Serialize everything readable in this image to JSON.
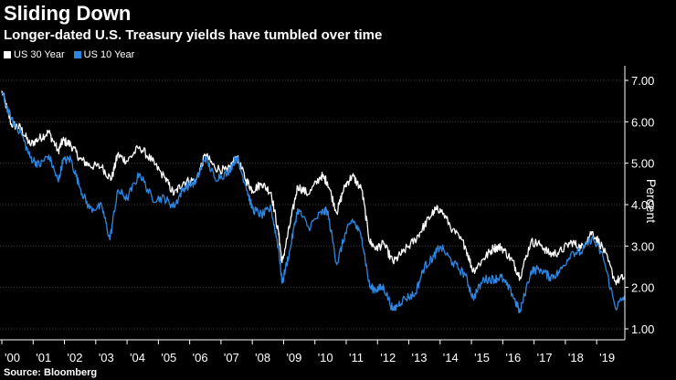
{
  "chart_data": {
    "type": "line",
    "title": "Sliding Down",
    "subtitle": "Longer-dated U.S. Treasury yields have tumbled over time",
    "source": "Source: Bloomberg",
    "ylabel": "Percent",
    "xlabel": "",
    "xlim": [
      2000.0,
      2019.9
    ],
    "ylim": [
      1.0,
      7.0
    ],
    "yticks": [
      "7.00",
      "6.00",
      "5.00",
      "4.00",
      "3.00",
      "2.00",
      "1.00"
    ],
    "ytick_values": [
      7,
      6,
      5,
      4,
      3,
      2,
      1
    ],
    "xticks": [
      "'00",
      "'01",
      "'02",
      "'03",
      "'04",
      "'05",
      "'06",
      "'07",
      "'08",
      "'09",
      "'10",
      "'11",
      "'12",
      "'13",
      "'14",
      "'15",
      "'16",
      "'17",
      "'18",
      "'19"
    ],
    "xtick_values": [
      2000,
      2001,
      2002,
      2003,
      2004,
      2005,
      2006,
      2007,
      2008,
      2009,
      2010,
      2011,
      2012,
      2013,
      2014,
      2015,
      2016,
      2017,
      2018,
      2019
    ],
    "series": [
      {
        "name": "US 30 Year",
        "color": "#ffffff",
        "x": [
          2000.0,
          2000.3,
          2000.6,
          2000.9,
          2001.2,
          2001.5,
          2001.8,
          2001.95,
          2002.2,
          2002.5,
          2002.8,
          2003.2,
          2003.5,
          2003.7,
          2004.0,
          2004.4,
          2004.8,
          2005.2,
          2005.5,
          2005.8,
          2006.2,
          2006.5,
          2006.8,
          2007.2,
          2007.5,
          2007.8,
          2008.0,
          2008.3,
          2008.6,
          2008.85,
          2008.95,
          2009.2,
          2009.45,
          2009.8,
          2010.2,
          2010.4,
          2010.7,
          2010.95,
          2011.2,
          2011.5,
          2011.75,
          2011.95,
          2012.2,
          2012.5,
          2012.8,
          2013.2,
          2013.5,
          2013.8,
          2014.0,
          2014.4,
          2014.8,
          2015.05,
          2015.4,
          2015.7,
          2015.95,
          2016.3,
          2016.55,
          2016.9,
          2017.2,
          2017.5,
          2017.8,
          2018.2,
          2018.5,
          2018.85,
          2019.2,
          2019.6,
          2019.9
        ],
        "values": [
          6.75,
          5.95,
          5.85,
          5.45,
          5.6,
          5.75,
          5.3,
          5.55,
          5.45,
          5.1,
          4.95,
          4.9,
          4.6,
          5.2,
          5.05,
          5.4,
          5.05,
          4.65,
          4.25,
          4.55,
          4.6,
          5.2,
          4.9,
          4.8,
          5.15,
          4.6,
          4.35,
          4.5,
          4.3,
          3.25,
          2.6,
          3.5,
          4.45,
          4.25,
          4.7,
          4.55,
          3.8,
          4.45,
          4.7,
          4.35,
          3.1,
          2.95,
          3.05,
          2.6,
          2.85,
          3.15,
          3.5,
          3.85,
          3.9,
          3.4,
          3.0,
          2.4,
          2.7,
          2.95,
          2.98,
          2.65,
          2.25,
          3.1,
          3.05,
          2.8,
          2.85,
          3.1,
          2.95,
          3.35,
          2.95,
          2.15,
          2.25
        ]
      },
      {
        "name": "US 10 Year",
        "color": "#2e86e0",
        "x": [
          2000.0,
          2000.3,
          2000.6,
          2000.9,
          2001.2,
          2001.5,
          2001.8,
          2001.95,
          2002.2,
          2002.5,
          2002.8,
          2003.2,
          2003.45,
          2003.7,
          2004.0,
          2004.4,
          2004.8,
          2005.2,
          2005.5,
          2005.8,
          2006.2,
          2006.5,
          2006.8,
          2007.2,
          2007.5,
          2007.8,
          2008.0,
          2008.3,
          2008.6,
          2008.85,
          2008.95,
          2009.2,
          2009.45,
          2009.8,
          2010.2,
          2010.4,
          2010.7,
          2010.95,
          2011.2,
          2011.5,
          2011.75,
          2011.95,
          2012.2,
          2012.5,
          2012.8,
          2013.2,
          2013.5,
          2013.8,
          2014.0,
          2014.4,
          2014.8,
          2015.05,
          2015.4,
          2015.7,
          2015.95,
          2016.3,
          2016.55,
          2016.9,
          2017.2,
          2017.5,
          2017.8,
          2018.2,
          2018.5,
          2018.85,
          2019.2,
          2019.6,
          2019.9
        ],
        "values": [
          6.7,
          6.05,
          5.75,
          5.15,
          4.95,
          5.2,
          4.55,
          5.05,
          5.1,
          4.4,
          3.9,
          3.95,
          3.15,
          4.35,
          4.15,
          4.75,
          4.15,
          4.15,
          3.95,
          4.4,
          4.55,
          5.15,
          4.65,
          4.75,
          5.15,
          4.45,
          3.9,
          3.75,
          3.9,
          2.9,
          2.1,
          2.9,
          3.9,
          3.45,
          3.8,
          3.85,
          2.55,
          3.25,
          3.65,
          3.2,
          2.0,
          1.95,
          2.0,
          1.45,
          1.7,
          1.85,
          2.5,
          2.75,
          3.0,
          2.6,
          2.3,
          1.75,
          2.2,
          2.2,
          2.25,
          1.85,
          1.4,
          2.4,
          2.45,
          2.25,
          2.35,
          2.85,
          2.85,
          3.2,
          2.75,
          1.5,
          1.8
        ]
      }
    ]
  }
}
